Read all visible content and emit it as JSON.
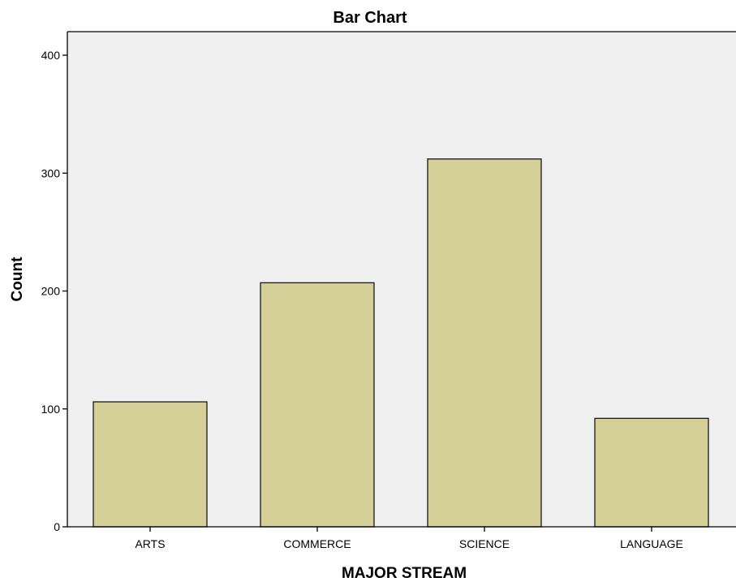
{
  "chart_data": {
    "type": "bar",
    "title": "Bar Chart",
    "xlabel": "MAJOR STREAM",
    "ylabel": "Count",
    "categories": [
      "ARTS",
      "COMMERCE",
      "SCIENCE",
      "LANGUAGE"
    ],
    "values": [
      106,
      207,
      312,
      92
    ],
    "ylim": [
      0,
      420
    ],
    "yticks": [
      0,
      100,
      200,
      300,
      400
    ],
    "grid": false,
    "legend": "none",
    "colors": {
      "bar_fill": "#d4cf97",
      "bar_stroke": "#1a1a1a",
      "plot_background": "#f0f0f0",
      "axis": "#000000"
    }
  }
}
